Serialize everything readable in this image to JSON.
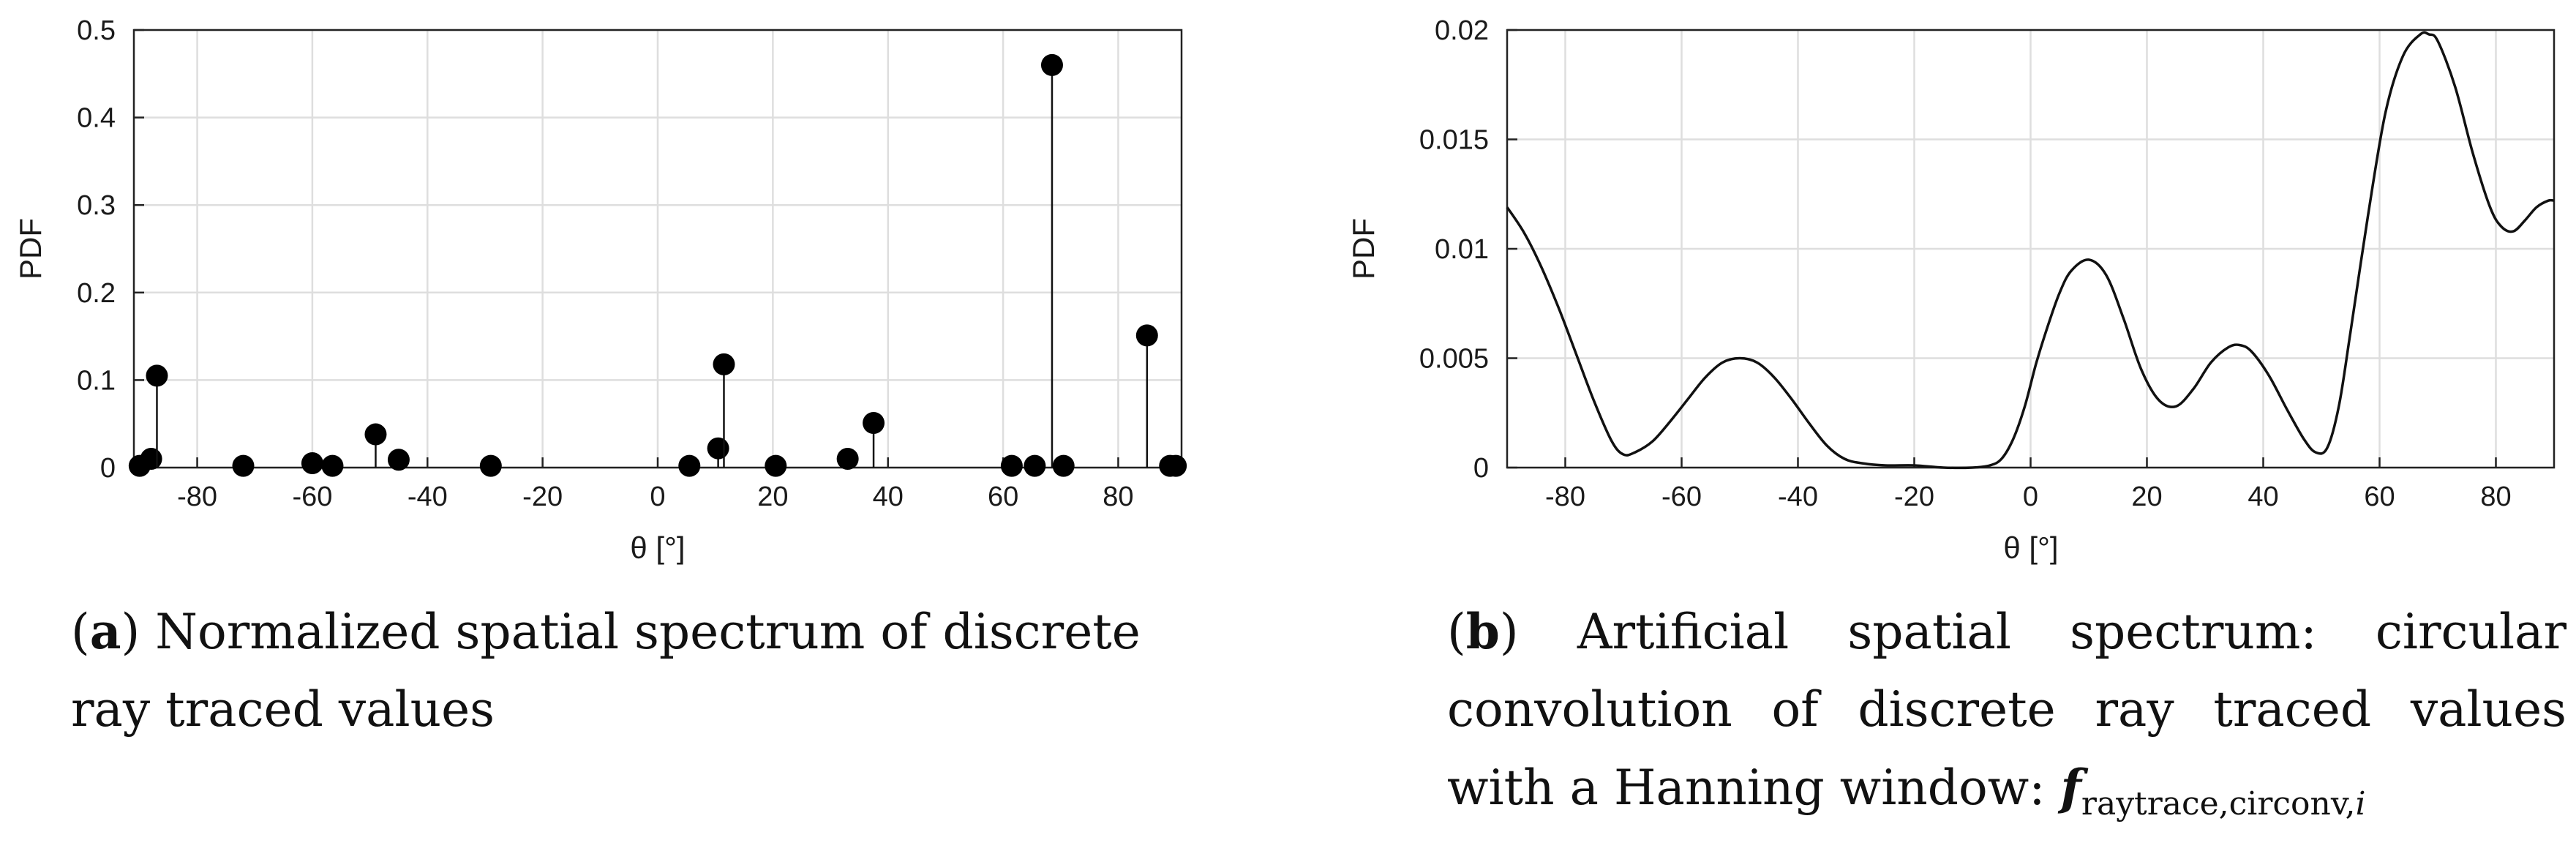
{
  "chart_data": [
    {
      "id": "a",
      "type": "stem",
      "xlabel": "θ [°]",
      "ylabel": "PDF",
      "xlim": [
        -91,
        91
      ],
      "ylim": [
        0,
        0.5
      ],
      "xticks": [
        -80,
        -60,
        -40,
        -20,
        0,
        20,
        40,
        60,
        80
      ],
      "yticks": [
        0,
        0.1,
        0.2,
        0.3,
        0.4,
        0.5
      ],
      "ytick_labels": [
        "0",
        "0.1",
        "0.2",
        "0.3",
        "0.4",
        "0.5"
      ],
      "grid": true,
      "points": [
        {
          "x": -90,
          "y": 0.002
        },
        {
          "x": -88,
          "y": 0.01
        },
        {
          "x": -87,
          "y": 0.105
        },
        {
          "x": -72,
          "y": 0.002
        },
        {
          "x": -60,
          "y": 0.005
        },
        {
          "x": -56.5,
          "y": 0.002
        },
        {
          "x": -49,
          "y": 0.038
        },
        {
          "x": -45,
          "y": 0.009
        },
        {
          "x": -29,
          "y": 0.002
        },
        {
          "x": 5.5,
          "y": 0.002
        },
        {
          "x": 10.5,
          "y": 0.022
        },
        {
          "x": 11.5,
          "y": 0.118
        },
        {
          "x": 20.5,
          "y": 0.002
        },
        {
          "x": 33,
          "y": 0.01
        },
        {
          "x": 37.5,
          "y": 0.051
        },
        {
          "x": 61.5,
          "y": 0.002
        },
        {
          "x": 65.5,
          "y": 0.002
        },
        {
          "x": 68.5,
          "y": 0.46
        },
        {
          "x": 70.5,
          "y": 0.002
        },
        {
          "x": 85,
          "y": 0.151
        },
        {
          "x": 89,
          "y": 0.002
        },
        {
          "x": 90,
          "y": 0.002
        }
      ]
    },
    {
      "id": "b",
      "type": "line",
      "xlabel": "θ [°]",
      "ylabel": "PDF",
      "xlim": [
        -90,
        90
      ],
      "ylim": [
        0,
        0.02
      ],
      "xticks": [
        -80,
        -60,
        -40,
        -20,
        0,
        20,
        40,
        60,
        80
      ],
      "yticks": [
        0,
        0.005,
        0.01,
        0.015,
        0.02
      ],
      "ytick_labels": [
        "0",
        "0.005",
        "0.01",
        "0.015",
        "0.02"
      ],
      "grid": true,
      "series": [
        {
          "name": "circular convolution",
          "x": [
            -90,
            -87,
            -84,
            -81,
            -78,
            -75,
            -72,
            -70,
            -68,
            -65,
            -62,
            -59,
            -56,
            -53,
            -50,
            -47,
            -44,
            -41,
            -38,
            -35,
            -32,
            -29,
            -25,
            -20,
            -15,
            -10,
            -7,
            -5,
            -3,
            -1,
            1,
            3,
            5,
            7,
            10,
            13,
            16,
            19,
            22,
            25,
            28,
            31,
            34,
            36,
            38,
            41,
            44,
            47,
            49,
            51,
            53,
            55,
            58,
            61,
            64,
            67,
            68.5,
            70,
            73,
            76,
            79,
            81,
            83,
            85,
            87,
            89,
            90
          ],
          "y": [
            0.0119,
            0.0107,
            0.0091,
            0.0072,
            0.0051,
            0.003,
            0.0012,
            0.0006,
            0.0007,
            0.0012,
            0.0021,
            0.0031,
            0.0041,
            0.0048,
            0.005,
            0.0048,
            0.0041,
            0.0031,
            0.002,
            0.001,
            0.0004,
            0.0002,
            0.0001,
            0.0001,
            0.0,
            0.0,
            0.0001,
            0.0004,
            0.0013,
            0.0028,
            0.0048,
            0.0065,
            0.008,
            0.009,
            0.0095,
            0.0088,
            0.0068,
            0.0045,
            0.0031,
            0.0028,
            0.0036,
            0.0048,
            0.0055,
            0.0056,
            0.0053,
            0.0042,
            0.0027,
            0.0013,
            0.0007,
            0.0009,
            0.0028,
            0.0062,
            0.0115,
            0.0162,
            0.0188,
            0.0198,
            0.0198,
            0.0195,
            0.0174,
            0.0144,
            0.0119,
            0.011,
            0.0108,
            0.0113,
            0.0119,
            0.0122,
            0.0122
          ]
        }
      ]
    }
  ],
  "captions": {
    "a": {
      "label": "a",
      "text": "Normalized spatial spectrum of discrete ray traced values"
    },
    "b": {
      "label": "b",
      "text": "Artificial spatial spectrum: circular convolution of discrete ray traced values with a Hanning window:",
      "symbol": "f",
      "sub_plain": "raytrace,circonv,",
      "sub_italic": "i"
    }
  }
}
